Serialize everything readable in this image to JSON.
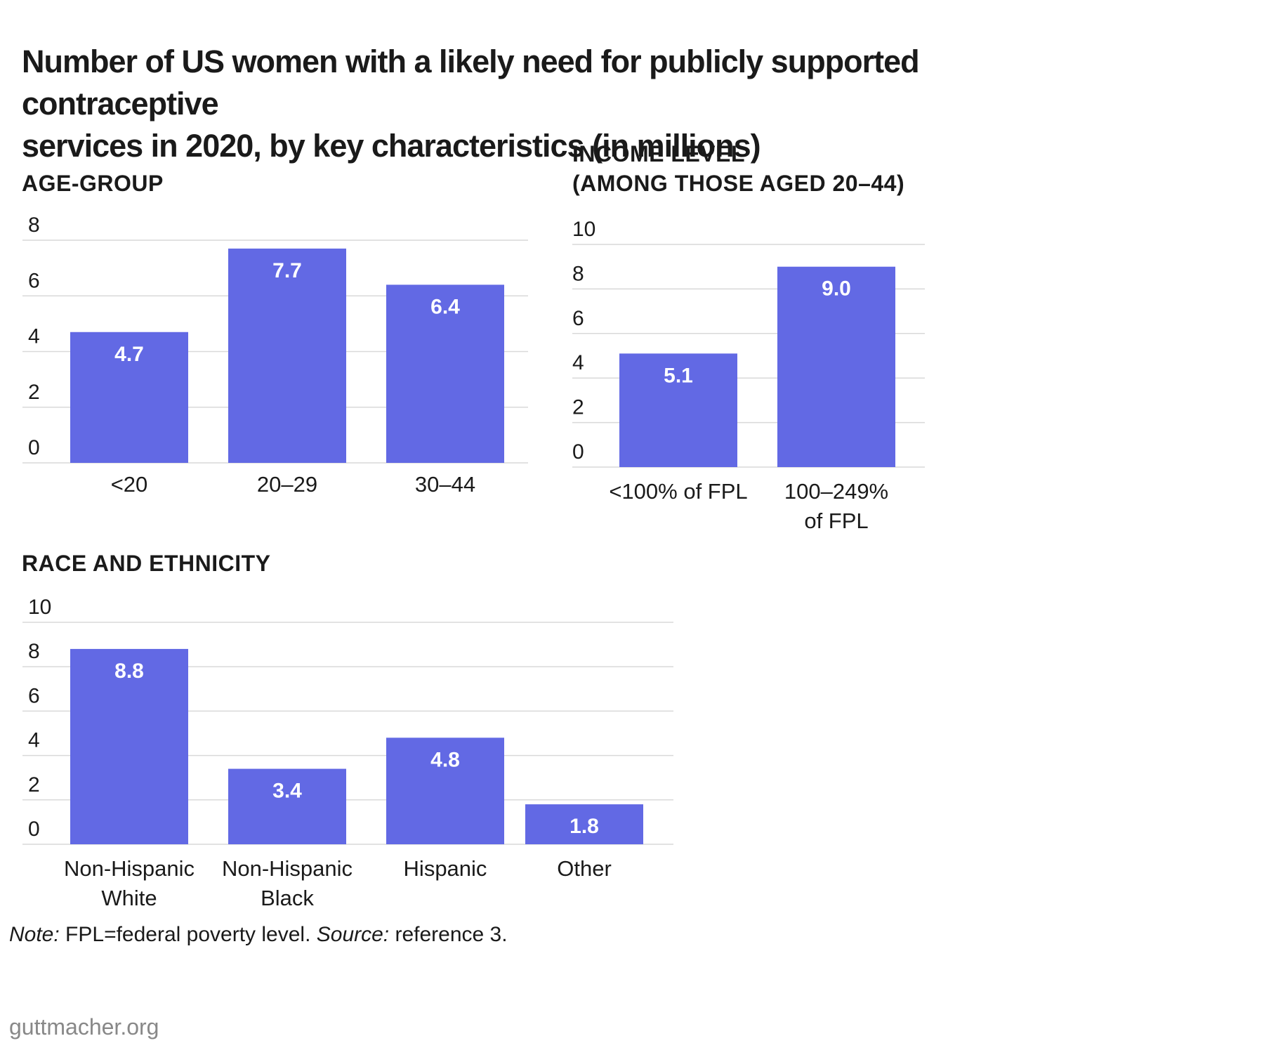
{
  "title_lines": [
    "Number of US women with a likely need for publicly supported contraceptive",
    "services in 2020, by key characteristics (in millions)"
  ],
  "colors": {
    "bar": "#6269e4",
    "grid": "#d9d9d9",
    "text": "#1a1a1a",
    "footer": "#888888"
  },
  "chart_data": [
    {
      "type": "bar",
      "title_lines": [
        "AGE-GROUP"
      ],
      "categories": [
        [
          "<20"
        ],
        [
          "20–29"
        ],
        [
          "30–44"
        ]
      ],
      "values": [
        4.7,
        7.7,
        6.4
      ],
      "value_labels": [
        "4.7",
        "7.7",
        "6.4"
      ],
      "y_ticks": [
        "0",
        "2",
        "4",
        "6",
        "8"
      ],
      "ylim": [
        0,
        8
      ],
      "grid": true
    },
    {
      "type": "bar",
      "title_lines": [
        "INCOME LEVEL",
        "(AMONG THOSE AGED 20–44)"
      ],
      "categories": [
        [
          "<100% of FPL"
        ],
        [
          "100–249%",
          "of FPL"
        ]
      ],
      "values": [
        5.1,
        9.0
      ],
      "value_labels": [
        "5.1",
        "9.0"
      ],
      "y_ticks": [
        "0",
        "2",
        "4",
        "6",
        "8",
        "10"
      ],
      "ylim": [
        0,
        10
      ],
      "grid": true
    },
    {
      "type": "bar",
      "title_lines": [
        "RACE AND ETHNICITY"
      ],
      "categories": [
        [
          "Non-Hispanic",
          "White"
        ],
        [
          "Non-Hispanic",
          "Black"
        ],
        [
          "Hispanic"
        ],
        [
          "Other"
        ]
      ],
      "values": [
        8.8,
        3.4,
        4.8,
        1.8
      ],
      "value_labels": [
        "8.8",
        "3.4",
        "4.8",
        "1.8"
      ],
      "y_ticks": [
        "0",
        "2",
        "4",
        "6",
        "8",
        "10"
      ],
      "ylim": [
        0,
        10
      ],
      "grid": true
    }
  ],
  "footnote": {
    "note_label": "Note:",
    "note_text": " FPL=federal poverty level. ",
    "source_label": "Source:",
    "source_text": " reference 3."
  },
  "source_url": "guttmacher.org"
}
